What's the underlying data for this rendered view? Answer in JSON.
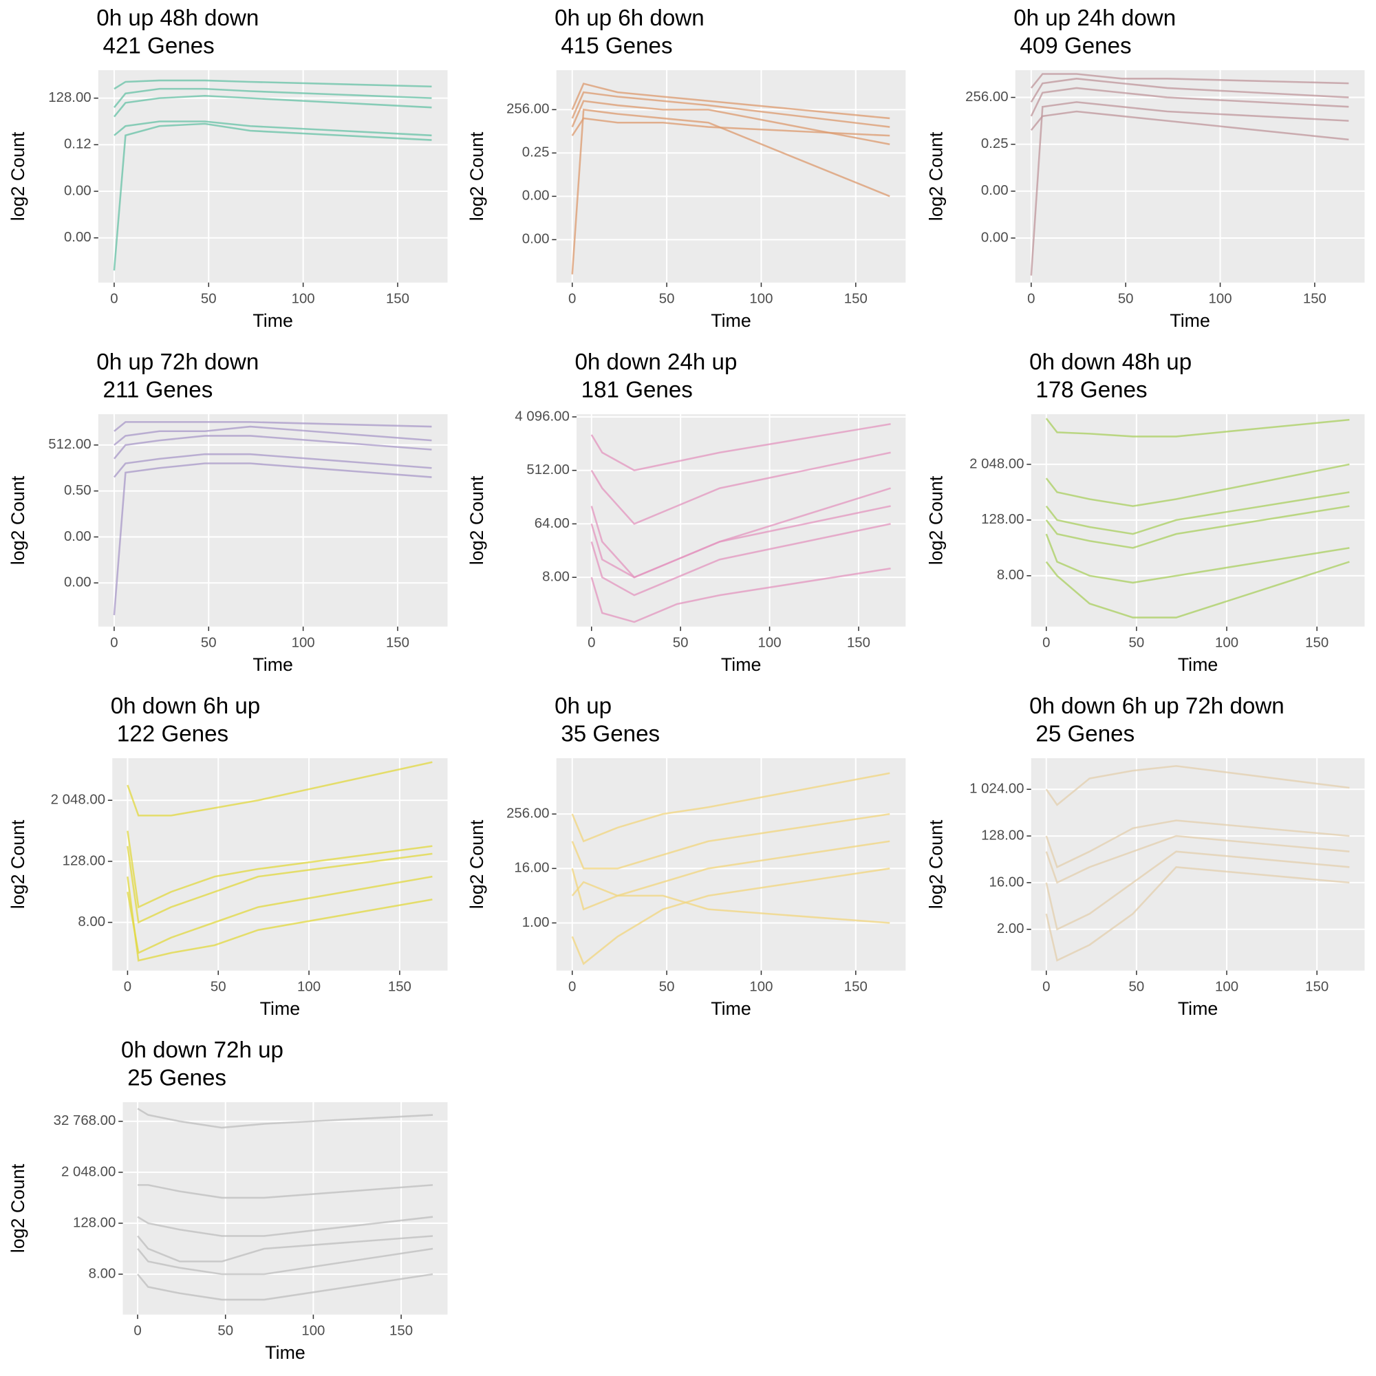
{
  "chart_data": [
    {
      "type": "line",
      "title": "0h up 48h down",
      "subtitle": " 421 Genes",
      "xlabel": "Time",
      "ylabel": "log2 Count",
      "color": "#66c2a5",
      "yscale": "log2",
      "x": [
        0,
        6,
        24,
        48,
        72,
        168
      ],
      "xlim": [
        -8.4,
        176.4
      ],
      "xticks": [
        0,
        50,
        100,
        150
      ],
      "ylim": [
        1.53e-10,
        8192
      ],
      "yticks": [
        {
          "value": 1.19e-07,
          "label": "0.00"
        },
        {
          "value": 0.000122,
          "label": "0.00"
        },
        {
          "value": 0.125,
          "label": "0.12"
        },
        {
          "value": 128,
          "label": "128.00"
        }
      ],
      "series": [
        {
          "values": [
            512,
            1448,
            1783,
            1783,
            1448,
            724
          ]
        },
        {
          "values": [
            0.5,
            2,
            4,
            4,
            2,
            0.5
          ]
        },
        {
          "values": [
            32,
            256,
            512,
            512,
            362,
            128
          ]
        },
        {
          "values": [
            9.3e-10,
            0.5,
            2,
            2.83,
            1,
            0.25
          ]
        },
        {
          "values": [
            8,
            64,
            128,
            181,
            128,
            32
          ]
        }
      ]
    },
    {
      "type": "line",
      "title": "0h up 6h down",
      "subtitle": " 415 Genes",
      "xlabel": "Time",
      "ylabel": "log2 Count",
      "color": "#dc9a6e",
      "yscale": "log2",
      "x": [
        0,
        6,
        24,
        48,
        72,
        168
      ],
      "xlim": [
        -8.4,
        176.4
      ],
      "xticks": [
        0,
        50,
        100,
        150
      ],
      "ylim": [
        2.49e-10,
        140400
      ],
      "yticks": [
        {
          "value": 2.38e-07,
          "label": "0.00"
        },
        {
          "value": 0.000244,
          "label": "0.00"
        },
        0.25,
        {
          "value": 256,
          "label": "256.00"
        }
      ],
      "series": [
        {
          "values": [
            256,
            16384,
            4096,
            2048,
            1024,
            64
          ]
        },
        {
          "values": [
            9.3e-10,
            256,
            128,
            64,
            32,
            0.000244
          ]
        },
        {
          "values": [
            4,
            64,
            32,
            32,
            16,
            4
          ]
        },
        {
          "values": [
            16,
            1024,
            512,
            256,
            256,
            1
          ]
        },
        {
          "values": [
            64,
            4096,
            2048,
            1024,
            512,
            16
          ]
        }
      ]
    },
    {
      "type": "line",
      "title": "0h up 24h down",
      "subtitle": " 409 Genes",
      "xlabel": "Time",
      "ylabel": "log2 Count",
      "color": "#bf969b",
      "yscale": "log2",
      "x": [
        0,
        6,
        24,
        48,
        72,
        168
      ],
      "xlim": [
        -8.4,
        176.4
      ],
      "xticks": [
        0,
        50,
        100,
        150
      ],
      "ylim": [
        3.29e-10,
        14263
      ],
      "yticks": [
        {
          "value": 2.38e-07,
          "label": "0.00"
        },
        {
          "value": 0.000244,
          "label": "0.00"
        },
        0.25,
        {
          "value": 256,
          "label": "256.00"
        }
      ],
      "series": [
        {
          "values": [
            1024,
            8192,
            8192,
            4096,
            4096,
            2048
          ]
        },
        {
          "values": [
            9.3e-10,
            64,
            128,
            64,
            32,
            8
          ]
        },
        {
          "values": [
            16,
            512,
            1024,
            512,
            256,
            64
          ]
        },
        {
          "values": [
            2,
            16,
            32,
            16,
            8,
            0.5
          ]
        },
        {
          "values": [
            128,
            2048,
            4096,
            2048,
            1024,
            256
          ]
        }
      ]
    },
    {
      "type": "line",
      "title": "0h up 72h down",
      "subtitle": " 211 Genes",
      "xlabel": "Time",
      "ylabel": "log2 Count",
      "color": "#a898c8",
      "yscale": "log2",
      "x": [
        0,
        6,
        24,
        48,
        72,
        168
      ],
      "xlim": [
        -8.4,
        176.4
      ],
      "xticks": [
        0,
        50,
        100,
        150
      ],
      "ylim": [
        6.6e-10,
        53218
      ],
      "yticks": [
        {
          "value": 4.77e-07,
          "label": "0.00"
        },
        {
          "value": 0.000488,
          "label": "0.00"
        },
        {
          "value": 0.5,
          "label": "0.50"
        },
        {
          "value": 512,
          "label": "512.00"
        }
      ],
      "series": [
        {
          "values": [
            4096,
            16384,
            16384,
            16384,
            16384,
            8192
          ]
        },
        {
          "values": [
            3.7e-09,
            8,
            16,
            32,
            32,
            4
          ]
        },
        {
          "values": [
            64,
            512,
            1024,
            2048,
            2048,
            256
          ]
        },
        {
          "values": [
            4,
            32,
            64,
            128,
            128,
            16
          ]
        },
        {
          "values": [
            512,
            2048,
            4096,
            4096,
            8192,
            1024
          ]
        }
      ]
    },
    {
      "type": "line",
      "title": "0h down 24h up",
      "subtitle": " 181 Genes",
      "xlabel": "Time",
      "ylabel": "log2 Count",
      "color": "#e396bf",
      "yscale": "log2",
      "x": [
        0,
        6,
        24,
        48,
        72,
        168
      ],
      "xlim": [
        -8.4,
        176.4
      ],
      "xticks": [
        0,
        50,
        100,
        150
      ],
      "ylim": [
        1.18,
        4545
      ],
      "yticks": [
        {
          "value": 8,
          "label": "8.00"
        },
        {
          "value": 64,
          "label": "64.00"
        },
        {
          "value": 512,
          "label": "512.00"
        },
        {
          "value": 4096,
          "label": "4 096.00"
        }
      ],
      "series": [
        {
          "values": [
            2048,
            1024,
            512,
            724,
            1024,
            3104
          ]
        },
        {
          "values": [
            128,
            32,
            8,
            16,
            32,
            256
          ]
        },
        {
          "values": [
            32,
            8,
            4,
            8,
            16,
            64
          ]
        },
        {
          "values": [
            8,
            2,
            1.41,
            2.83,
            4,
            11.3
          ]
        },
        {
          "values": [
            512,
            256,
            64,
            128,
            256,
            1024
          ]
        },
        {
          "values": [
            64,
            16,
            8,
            16,
            32,
            128
          ]
        }
      ]
    },
    {
      "type": "line",
      "title": "0h down 48h up",
      "subtitle": " 178 Genes",
      "xlabel": "Time",
      "ylabel": "log2 Count",
      "color": "#a9cf5f",
      "yscale": "log2",
      "x": [
        0,
        6,
        24,
        48,
        72,
        168
      ],
      "xlim": [
        -8.4,
        176.4
      ],
      "xticks": [
        0,
        50,
        100,
        150
      ],
      "ylim": [
        0.637,
        24834
      ],
      "yticks": [
        {
          "value": 8,
          "label": "8.00"
        },
        {
          "value": 128,
          "label": "128.00"
        },
        {
          "value": 2048,
          "label": "2 048.00"
        }
      ],
      "series": [
        {
          "values": [
            20171,
            10086,
            9410,
            8192,
            8192,
            18820
          ]
        },
        {
          "values": [
            1024,
            512,
            362,
            256,
            362,
            2048
          ]
        },
        {
          "values": [
            128,
            64,
            45.3,
            32,
            64,
            256
          ]
        },
        {
          "values": [
            16,
            8,
            2,
            1,
            1,
            16
          ]
        },
        {
          "values": [
            64,
            16,
            8,
            5.66,
            8,
            32
          ]
        },
        {
          "values": [
            256,
            128,
            90.5,
            64,
            128,
            512
          ]
        }
      ]
    },
    {
      "type": "line",
      "title": "0h down 6h up",
      "subtitle": " 122 Genes",
      "xlabel": "Time",
      "ylabel": "log2 Count",
      "color": "#e2d83f",
      "yscale": "log2",
      "x": [
        0,
        6,
        24,
        48,
        72,
        168
      ],
      "xlim": [
        -8.4,
        176.4
      ],
      "xticks": [
        0,
        50,
        100,
        150
      ],
      "ylim": [
        0.895,
        13870
      ],
      "yticks": [
        {
          "value": 8,
          "label": "8.00"
        },
        {
          "value": 128,
          "label": "128.00"
        },
        {
          "value": 2048,
          "label": "2 048.00"
        }
      ],
      "series": [
        {
          "values": [
            4096,
            1024,
            1024,
            1448,
            2048,
            11585
          ]
        },
        {
          "values": [
            512,
            16,
            32,
            64,
            90.5,
            256
          ]
        },
        {
          "values": [
            64,
            1.41,
            2,
            2.83,
            5.66,
            22.6
          ]
        },
        {
          "values": [
            256,
            8,
            16,
            32,
            64,
            181
          ]
        },
        {
          "values": [
            32,
            2,
            4,
            8,
            16,
            64
          ]
        }
      ]
    },
    {
      "type": "line",
      "title": "0h up",
      "subtitle": " 35 Genes",
      "xlabel": "Time",
      "ylabel": "log2 Count",
      "color": "#f2d57e",
      "yscale": "log2",
      "x": [
        0,
        6,
        24,
        48,
        72,
        168
      ],
      "xlim": [
        -8.4,
        176.4
      ],
      "xticks": [
        0,
        50,
        100,
        150
      ],
      "ylim": [
        0.0884,
        4389
      ],
      "yticks": [
        {
          "value": 1,
          "label": "1.00"
        },
        {
          "value": 16,
          "label": "16.00"
        },
        {
          "value": 256,
          "label": "256.00"
        }
      ],
      "series": [
        {
          "values": [
            256,
            64,
            128,
            256,
            362,
            2048
          ]
        },
        {
          "values": [
            16,
            2,
            4,
            8,
            16,
            64
          ]
        },
        {
          "values": [
            0.5,
            0.125,
            0.5,
            2,
            4,
            16
          ]
        },
        {
          "values": [
            4,
            8,
            4,
            4,
            2,
            1
          ]
        },
        {
          "values": [
            64,
            16,
            16,
            32,
            64,
            256
          ]
        }
      ]
    },
    {
      "type": "line",
      "title": "0h down 6h up 72h down",
      "subtitle": " 25 Genes",
      "xlabel": "Time",
      "ylabel": "log2 Count",
      "color": "#e3cfae",
      "yscale": "log2",
      "x": [
        0,
        6,
        24,
        48,
        72,
        168
      ],
      "xlim": [
        -8.4,
        176.4
      ],
      "xticks": [
        0,
        50,
        100,
        150
      ],
      "ylim": [
        0.318,
        4096
      ],
      "yticks": [
        {
          "value": 2,
          "label": "2.00"
        },
        {
          "value": 16,
          "label": "16.00"
        },
        {
          "value": 128,
          "label": "128.00"
        },
        {
          "value": 1024,
          "label": "1 024.00"
        }
      ],
      "series": [
        {
          "values": [
            1024,
            512,
            1663,
            2353,
            2896,
            1097
          ]
        },
        {
          "values": [
            128,
            32,
            64,
            181,
            256,
            128
          ]
        },
        {
          "values": [
            16,
            2,
            4,
            16,
            64,
            32
          ]
        },
        {
          "values": [
            4,
            0.5,
            1,
            4,
            32,
            16
          ]
        },
        {
          "values": [
            64,
            16,
            32,
            64,
            128,
            64
          ]
        }
      ]
    },
    {
      "type": "line",
      "title": "0h down 72h up",
      "subtitle": " 25 Genes",
      "xlabel": "Time",
      "ylabel": "log2 Count",
      "color": "#bdbdbd",
      "yscale": "log2",
      "x": [
        0,
        6,
        24,
        48,
        72,
        168
      ],
      "xlim": [
        -8.4,
        176.4
      ],
      "xticks": [
        0,
        50,
        100,
        150
      ],
      "ylim": [
        0.889,
        92682
      ],
      "yticks": [
        {
          "value": 8,
          "label": "8.00"
        },
        {
          "value": 128,
          "label": "128.00"
        },
        {
          "value": 2048,
          "label": "2 048.00"
        },
        {
          "value": 32768,
          "label": "32 768.00"
        }
      ],
      "series": [
        {
          "values": [
            65536,
            46341,
            32768,
            23170,
            28526,
            46341
          ]
        },
        {
          "values": [
            1024,
            1024,
            724,
            512,
            512,
            1024
          ]
        },
        {
          "values": [
            181,
            128,
            90.5,
            64,
            64,
            181
          ]
        },
        {
          "values": [
            32,
            16,
            11.3,
            8,
            8,
            32
          ]
        },
        {
          "values": [
            8,
            4,
            2.83,
            2,
            2,
            8
          ]
        },
        {
          "values": [
            64,
            32,
            16,
            16,
            32,
            64
          ]
        }
      ]
    }
  ]
}
